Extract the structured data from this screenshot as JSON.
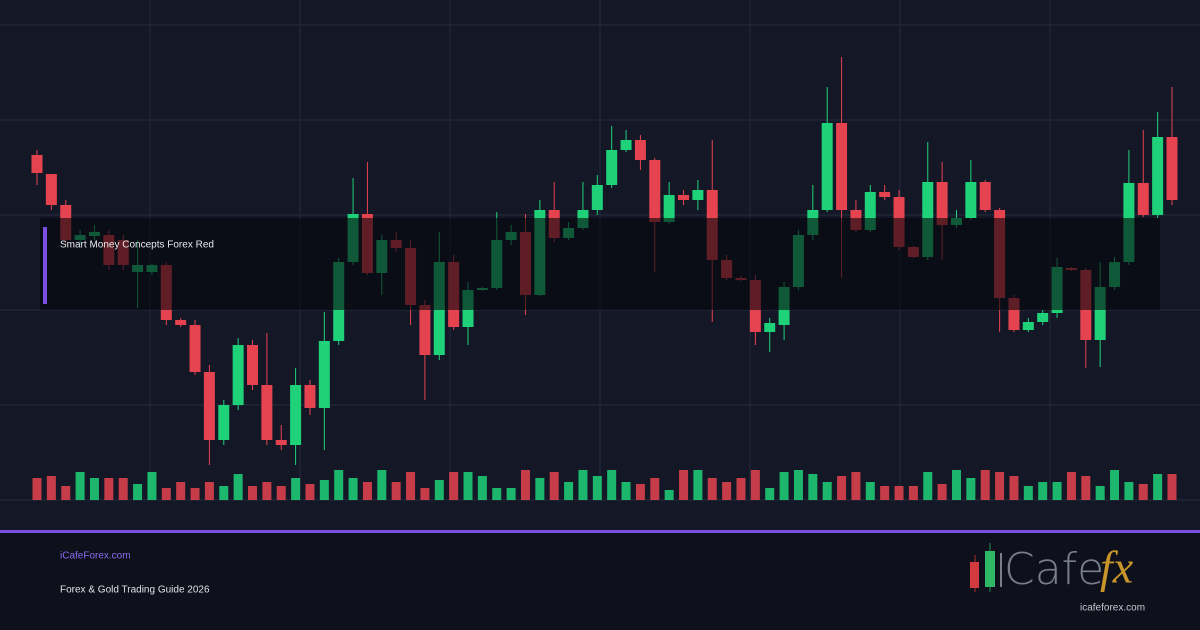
{
  "chart_data": {
    "type": "candlestick",
    "title": "Smart Money Concepts Forex Red",
    "up_color": "#1fd27a",
    "down_color": "#e5434f",
    "ylim": [
      0,
      475
    ],
    "volume_ylim": [
      0,
      40
    ],
    "open": [
      345,
      326,
      295,
      260,
      264,
      265,
      260,
      228,
      228,
      235,
      180,
      175,
      128,
      60,
      95,
      155,
      115,
      60,
      55,
      115,
      92,
      159,
      238,
      286,
      227,
      260,
      252,
      195,
      145,
      238,
      173,
      210,
      212,
      260,
      268,
      205,
      290,
      262,
      272,
      290,
      315,
      350,
      360,
      340,
      278,
      305,
      300,
      310,
      240,
      222,
      220,
      168,
      175,
      213,
      265,
      290,
      377,
      290,
      270,
      308,
      303,
      253,
      243,
      318,
      275,
      282,
      318,
      290,
      202,
      170,
      178,
      187,
      232,
      230,
      160,
      213,
      238,
      317,
      285,
      363
    ],
    "high": [
      350,
      326,
      300,
      270,
      275,
      270,
      265,
      260,
      236,
      238,
      182,
      180,
      135,
      100,
      162,
      160,
      167,
      75,
      132,
      120,
      188,
      242,
      322,
      338,
      265,
      268,
      260,
      200,
      268,
      245,
      218,
      213,
      288,
      275,
      286,
      300,
      318,
      278,
      318,
      325,
      374,
      370,
      365,
      342,
      318,
      310,
      320,
      360,
      245,
      224,
      225,
      182,
      218,
      270,
      315,
      413,
      443,
      300,
      315,
      315,
      310,
      254,
      358,
      338,
      290,
      340,
      320,
      292,
      205,
      182,
      190,
      242,
      233,
      232,
      238,
      243,
      350,
      370,
      388,
      413
    ],
    "low": [
      315,
      290,
      255,
      255,
      260,
      230,
      230,
      192,
      225,
      175,
      173,
      125,
      35,
      55,
      90,
      110,
      55,
      50,
      35,
      85,
      50,
      155,
      235,
      225,
      205,
      248,
      175,
      100,
      140,
      170,
      155,
      209,
      210,
      255,
      185,
      204,
      258,
      260,
      270,
      285,
      312,
      348,
      330,
      228,
      276,
      295,
      290,
      178,
      220,
      219,
      155,
      148,
      160,
      210,
      260,
      288,
      222,
      268,
      268,
      300,
      250,
      242,
      240,
      240,
      272,
      280,
      288,
      168,
      168,
      168,
      175,
      182,
      229,
      132,
      133,
      210,
      235,
      283,
      282,
      295
    ],
    "close": [
      327,
      295,
      260,
      265,
      268,
      235,
      235,
      235,
      235,
      180,
      175,
      128,
      60,
      95,
      155,
      115,
      60,
      55,
      115,
      92,
      159,
      238,
      286,
      227,
      260,
      252,
      195,
      145,
      238,
      173,
      210,
      212,
      260,
      268,
      205,
      290,
      262,
      272,
      290,
      315,
      350,
      360,
      340,
      278,
      305,
      300,
      310,
      240,
      222,
      220,
      168,
      177,
      213,
      265,
      290,
      377,
      290,
      270,
      308,
      303,
      253,
      243,
      318,
      275,
      282,
      318,
      290,
      202,
      170,
      178,
      187,
      233,
      230,
      160,
      213,
      238,
      317,
      285,
      363,
      300
    ],
    "volume": [
      22,
      24,
      14,
      28,
      22,
      22,
      22,
      16,
      28,
      12,
      18,
      12,
      18,
      14,
      26,
      14,
      18,
      14,
      22,
      16,
      20,
      30,
      22,
      18,
      30,
      18,
      28,
      12,
      20,
      28,
      28,
      24,
      12,
      12,
      30,
      22,
      28,
      18,
      30,
      24,
      30,
      18,
      16,
      22,
      10,
      30,
      30,
      22,
      18,
      22,
      30,
      12,
      28,
      30,
      26,
      18,
      24,
      28,
      18,
      14,
      14,
      14,
      28,
      16,
      30,
      22,
      30,
      28,
      24,
      14,
      18,
      18,
      28,
      24,
      14,
      30,
      18,
      16,
      26,
      26
    ]
  },
  "footer": {
    "site": "iCafeForex.com",
    "subtitle": "Forex & Gold Trading Guide 2026",
    "logo_word": "Cafe",
    "logo_fx": "fx",
    "logo_url": "icafeforex.com"
  }
}
